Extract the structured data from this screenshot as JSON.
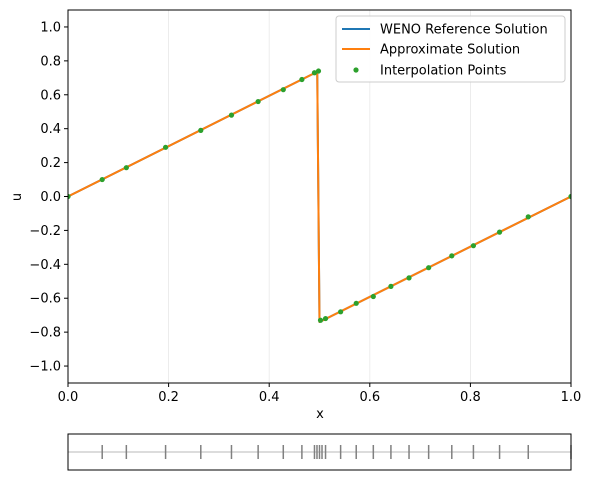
{
  "chart_data": [
    {
      "type": "line",
      "xlabel": "x",
      "ylabel": "u",
      "xlim": [
        0.0,
        1.0
      ],
      "ylim": [
        -1.1,
        1.1
      ],
      "x_ticks": [
        "0.0",
        "0.2",
        "0.4",
        "0.6",
        "0.8",
        "1.0"
      ],
      "y_ticks": [
        "-1.0",
        "-0.8",
        "-0.6",
        "-0.4",
        "-0.2",
        "0.0",
        "0.2",
        "0.4",
        "0.6",
        "0.8",
        "1.0"
      ],
      "grid": "vertical, faint",
      "legend_position": "top-right",
      "series": [
        {
          "name": "WENO Reference Solution",
          "style": "line",
          "color": "#1f77b4",
          "x": [
            0.0,
            0.495,
            0.4955,
            0.5,
            1.0
          ],
          "y": [
            0.0,
            0.735,
            0.735,
            -0.74,
            0.0
          ]
        },
        {
          "name": "Approximate Solution",
          "style": "line",
          "color": "#ff7f0e",
          "x": [
            0.0,
            0.495,
            0.4955,
            0.5,
            1.0
          ],
          "y": [
            0.0,
            0.735,
            0.735,
            -0.74,
            0.0
          ]
        },
        {
          "name": "Interpolation Points",
          "style": "scatter",
          "color": "#2ca02c",
          "x": [
            0.0,
            0.068,
            0.116,
            0.194,
            0.264,
            0.325,
            0.378,
            0.428,
            0.465,
            0.49,
            0.498,
            0.502,
            0.512,
            0.542,
            0.573,
            0.607,
            0.642,
            0.678,
            0.717,
            0.763,
            0.806,
            0.858,
            0.915,
            1.0
          ],
          "y": [
            0.0,
            0.1,
            0.17,
            0.29,
            0.39,
            0.48,
            0.56,
            0.63,
            0.69,
            0.73,
            0.74,
            -0.73,
            -0.72,
            -0.68,
            -0.63,
            -0.59,
            -0.53,
            -0.48,
            -0.42,
            -0.35,
            -0.29,
            -0.21,
            -0.12,
            0.0
          ]
        }
      ]
    },
    {
      "type": "strip",
      "xlim": [
        0.0,
        1.0
      ],
      "tick_color": "#808080",
      "line_color": "#d0d0d0",
      "ticks_x": [
        0.068,
        0.116,
        0.194,
        0.264,
        0.325,
        0.378,
        0.428,
        0.465,
        0.49,
        0.495,
        0.5,
        0.505,
        0.512,
        0.542,
        0.573,
        0.607,
        0.642,
        0.678,
        0.717,
        0.763,
        0.806,
        0.858,
        0.915,
        1.0
      ]
    }
  ]
}
